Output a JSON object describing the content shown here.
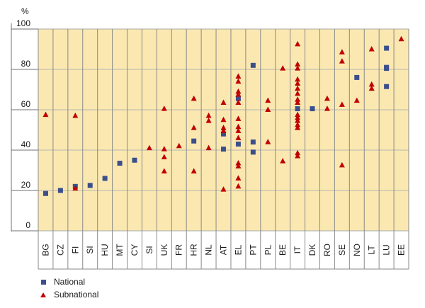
{
  "chart_data": {
    "type": "scatter",
    "title": "",
    "unit_label": "%",
    "xlabel": "",
    "ylabel": "",
    "ylim": [
      0,
      100
    ],
    "yticks": [
      0,
      20,
      40,
      60,
      80,
      100
    ],
    "grid": true,
    "legend_position": "bottom-left",
    "categories": [
      "BG",
      "CZ",
      "FI",
      "SI",
      "HU",
      "MT",
      "CY",
      "SI",
      "UK",
      "FR",
      "HR",
      "NL",
      "AT",
      "EL",
      "PT",
      "PL",
      "BE",
      "IT",
      "DK",
      "RO",
      "SE",
      "NO",
      "LT",
      "LU",
      "EE"
    ],
    "series": [
      {
        "name": "National",
        "marker": "square",
        "color": "#3b4f8c",
        "points": [
          {
            "category": "BG",
            "y": 18.5
          },
          {
            "category": "CZ",
            "y": 20
          },
          {
            "category": "FI",
            "y": 22
          },
          {
            "category": "SI",
            "category_index": 3,
            "y": 22.5
          },
          {
            "category": "HU",
            "y": 26
          },
          {
            "category": "MT",
            "y": 33.5
          },
          {
            "category": "CY",
            "y": 35
          },
          {
            "category": "HR",
            "y": 44.5
          },
          {
            "category": "AT",
            "y": 40.5
          },
          {
            "category": "AT",
            "y": 48
          },
          {
            "category": "EL",
            "y": 43
          },
          {
            "category": "EL",
            "y": 65.5
          },
          {
            "category": "PT",
            "y": 82
          },
          {
            "category": "PT",
            "y": 44
          },
          {
            "category": "PT",
            "y": 39
          },
          {
            "category": "IT",
            "y": 60.5
          },
          {
            "category": "DK",
            "y": 60.5
          },
          {
            "category": "NO",
            "y": 76
          },
          {
            "category": "LU",
            "y": 90.5
          },
          {
            "category": "LU",
            "y": 81
          },
          {
            "category": "LU",
            "y": 80.5
          },
          {
            "category": "LU",
            "y": 71.5
          }
        ]
      },
      {
        "name": "Subnational",
        "marker": "triangle",
        "color": "#c00000",
        "points": [
          {
            "category": "BG",
            "y": 57.5
          },
          {
            "category": "FI",
            "y": 57
          },
          {
            "category": "FI",
            "y": 21
          },
          {
            "category": "SI",
            "category_index": 7,
            "y": 41
          },
          {
            "category": "UK",
            "y": 60.5
          },
          {
            "category": "UK",
            "y": 40.5
          },
          {
            "category": "UK",
            "y": 36.5
          },
          {
            "category": "UK",
            "y": 29.5
          },
          {
            "category": "FR",
            "y": 42
          },
          {
            "category": "HR",
            "y": 65.5
          },
          {
            "category": "HR",
            "y": 51
          },
          {
            "category": "HR",
            "y": 29.5
          },
          {
            "category": "NL",
            "y": 57
          },
          {
            "category": "NL",
            "y": 54.5
          },
          {
            "category": "NL",
            "y": 41
          },
          {
            "category": "AT",
            "y": 63.5
          },
          {
            "category": "AT",
            "y": 55
          },
          {
            "category": "AT",
            "y": 51
          },
          {
            "category": "AT",
            "y": 49.5
          },
          {
            "category": "AT",
            "y": 20.5
          },
          {
            "category": "EL",
            "y": 76.5
          },
          {
            "category": "EL",
            "y": 74
          },
          {
            "category": "EL",
            "y": 69
          },
          {
            "category": "EL",
            "y": 67.5
          },
          {
            "category": "EL",
            "y": 63.5
          },
          {
            "category": "EL",
            "y": 55.5
          },
          {
            "category": "EL",
            "y": 51.5
          },
          {
            "category": "EL",
            "y": 49.5
          },
          {
            "category": "EL",
            "y": 46
          },
          {
            "category": "EL",
            "y": 33.5
          },
          {
            "category": "EL",
            "y": 32
          },
          {
            "category": "EL",
            "y": 26
          },
          {
            "category": "EL",
            "y": 22
          },
          {
            "category": "PL",
            "y": 64.5
          },
          {
            "category": "PL",
            "y": 60
          },
          {
            "category": "PL",
            "y": 44
          },
          {
            "category": "BE",
            "y": 80.5
          },
          {
            "category": "BE",
            "y": 34.5
          },
          {
            "category": "IT",
            "y": 92.5
          },
          {
            "category": "IT",
            "y": 82.5
          },
          {
            "category": "IT",
            "y": 80.5
          },
          {
            "category": "IT",
            "y": 75
          },
          {
            "category": "IT",
            "y": 73
          },
          {
            "category": "IT",
            "y": 70.5
          },
          {
            "category": "IT",
            "y": 68
          },
          {
            "category": "IT",
            "y": 65
          },
          {
            "category": "IT",
            "y": 63.5
          },
          {
            "category": "IT",
            "y": 57.5
          },
          {
            "category": "IT",
            "y": 56
          },
          {
            "category": "IT",
            "y": 54.5
          },
          {
            "category": "IT",
            "y": 52.5
          },
          {
            "category": "IT",
            "y": 51
          },
          {
            "category": "IT",
            "y": 38.5
          },
          {
            "category": "IT",
            "y": 37
          },
          {
            "category": "RO",
            "y": 65.5
          },
          {
            "category": "RO",
            "y": 60.5
          },
          {
            "category": "SE",
            "y": 88.5
          },
          {
            "category": "SE",
            "y": 84
          },
          {
            "category": "SE",
            "y": 62.5
          },
          {
            "category": "SE",
            "y": 32.5
          },
          {
            "category": "NO",
            "y": 64.5
          },
          {
            "category": "LT",
            "y": 90
          },
          {
            "category": "LT",
            "y": 72.5
          },
          {
            "category": "LT",
            "y": 70.5
          },
          {
            "category": "EE",
            "y": 95
          }
        ]
      }
    ]
  }
}
